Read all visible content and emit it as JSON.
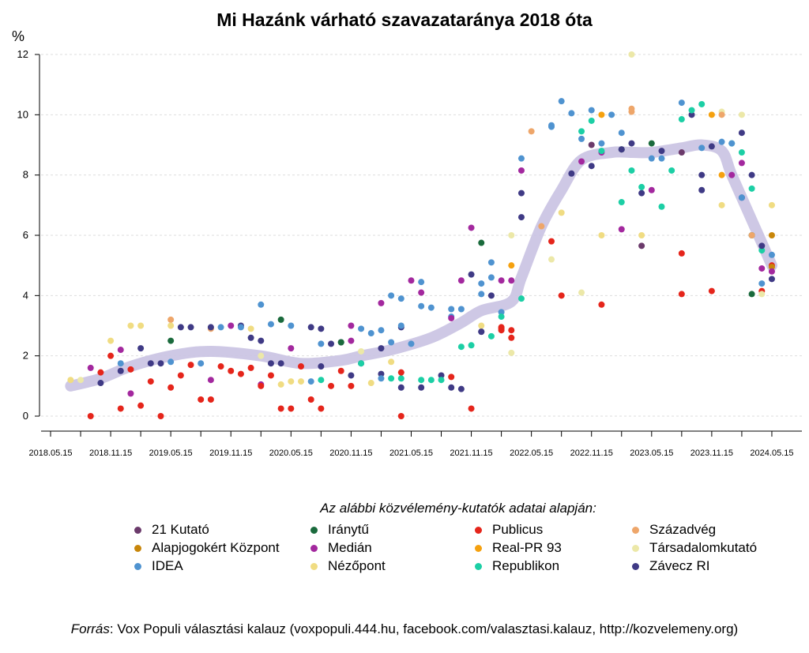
{
  "chart_data": {
    "type": "scatter",
    "title": "Mi Hazánk várható szavazataránya 2018 óta",
    "ylabel": "%",
    "ylim": [
      0,
      12
    ],
    "yticks": [
      "0",
      "2",
      "4",
      "6",
      "8",
      "10",
      "12"
    ],
    "xlim": [
      "2018-04",
      "2024-07"
    ],
    "xticks": [
      "2018.05.15",
      "2018.11.15",
      "2019.05.15",
      "2019.11.15",
      "2020.05.15",
      "2020.11.15",
      "2021.05.15",
      "2021.11.15",
      "2022.05.15",
      "2022.11.15",
      "2023.05.15",
      "2023.11.15",
      "2024.05.15"
    ],
    "grid": "horizontal dashed",
    "legend_title": "Az alábbi közvélemény-kutatók adatai alapján:",
    "legend_placement": "bottom",
    "pollsters": [
      {
        "code": "K21",
        "name": "21 Kutató",
        "color": "#6b3a6b"
      },
      {
        "code": "AJK",
        "name": "Alapjogokért Központ",
        "color": "#c8860a"
      },
      {
        "code": "IDEA",
        "name": "IDEA",
        "color": "#4f93d0"
      },
      {
        "code": "IR",
        "name": "Iránytű",
        "color": "#1a6a3c"
      },
      {
        "code": "MED",
        "name": "Medián",
        "color": "#a3289e"
      },
      {
        "code": "NEZ",
        "name": "Nézőpont",
        "color": "#f0dc82"
      },
      {
        "code": "PUB",
        "name": "Publicus",
        "color": "#e5251b"
      },
      {
        "code": "RPR",
        "name": "Real-PR 93",
        "color": "#f5a10f"
      },
      {
        "code": "REP",
        "name": "Republikon",
        "color": "#1ccfa5"
      },
      {
        "code": "SZA",
        "name": "Századvég",
        "color": "#eea66a"
      },
      {
        "code": "TAR",
        "name": "Társadalomkutató",
        "color": "#ece8a8"
      },
      {
        "code": "ZAV",
        "name": "Závecz RI",
        "color": "#3f3a85"
      }
    ],
    "trend_color": "#c9c2e2",
    "trend": [
      [
        "2018-07",
        1.0
      ],
      [
        "2018-10",
        1.25
      ],
      [
        "2019-01",
        1.65
      ],
      [
        "2019-05",
        2.0
      ],
      [
        "2019-09",
        2.15
      ],
      [
        "2020-02",
        2.0
      ],
      [
        "2020-06",
        1.75
      ],
      [
        "2020-10",
        1.85
      ],
      [
        "2020-12",
        2.0
      ],
      [
        "2021-03",
        2.2
      ],
      [
        "2021-07",
        2.6
      ],
      [
        "2021-10",
        3.1
      ],
      [
        "2021-12",
        3.5
      ],
      [
        "2022-03",
        3.8
      ],
      [
        "2022-04",
        4.6
      ],
      [
        "2022-06",
        6.3
      ],
      [
        "2022-08",
        7.5
      ],
      [
        "2022-10",
        8.5
      ],
      [
        "2023-01",
        8.75
      ],
      [
        "2023-03",
        8.75
      ],
      [
        "2023-05",
        8.75
      ],
      [
        "2023-08",
        8.9
      ],
      [
        "2023-10",
        9.0
      ],
      [
        "2023-12",
        8.8
      ],
      [
        "2024-01",
        8.0
      ],
      [
        "2024-03",
        6.5
      ],
      [
        "2024-05",
        5.0
      ]
    ],
    "points": [
      [
        "2018-07",
        1.2,
        "NEZ"
      ],
      [
        "2018-08",
        1.2,
        "TAR"
      ],
      [
        "2018-09",
        0,
        "PUB"
      ],
      [
        "2018-09",
        1.6,
        "MED"
      ],
      [
        "2018-10",
        1.45,
        "PUB"
      ],
      [
        "2018-10",
        1.1,
        "ZAV"
      ],
      [
        "2018-11",
        2.0,
        "PUB"
      ],
      [
        "2018-11",
        2.5,
        "NEZ"
      ],
      [
        "2018-12",
        2.2,
        "MED"
      ],
      [
        "2018-12",
        1.5,
        "ZAV"
      ],
      [
        "2018-12",
        0.25,
        "PUB"
      ],
      [
        "2018-12",
        1.75,
        "IDEA"
      ],
      [
        "2019-01",
        3.0,
        "NEZ"
      ],
      [
        "2019-01",
        1.55,
        "PUB"
      ],
      [
        "2019-01",
        0.75,
        "MED"
      ],
      [
        "2019-02",
        2.25,
        "ZAV"
      ],
      [
        "2019-02",
        3.0,
        "NEZ"
      ],
      [
        "2019-02",
        0.35,
        "PUB"
      ],
      [
        "2019-03",
        1.15,
        "PUB"
      ],
      [
        "2019-03",
        1.75,
        "ZAV"
      ],
      [
        "2019-04",
        0,
        "PUB"
      ],
      [
        "2019-04",
        1.75,
        "ZAV"
      ],
      [
        "2019-05",
        1.8,
        "IDEA"
      ],
      [
        "2019-05",
        3.2,
        "SZA"
      ],
      [
        "2019-05",
        2.5,
        "IR"
      ],
      [
        "2019-05",
        3.0,
        "NEZ"
      ],
      [
        "2019-06",
        2.95,
        "ZAV"
      ],
      [
        "2019-05",
        0.95,
        "PUB"
      ],
      [
        "2019-06",
        1.35,
        "PUB"
      ],
      [
        "2019-07",
        2.95,
        "ZAV"
      ],
      [
        "2019-07",
        1.7,
        "PUB"
      ],
      [
        "2019-08",
        0.55,
        "PUB"
      ],
      [
        "2019-09",
        0.55,
        "PUB"
      ],
      [
        "2019-09",
        2.9,
        "SZA"
      ],
      [
        "2019-08",
        1.75,
        "IDEA"
      ],
      [
        "2019-09",
        2.95,
        "ZAV"
      ],
      [
        "2019-09",
        1.2,
        "MED"
      ],
      [
        "2019-10",
        2.95,
        "IDEA"
      ],
      [
        "2019-10",
        1.65,
        "PUB"
      ],
      [
        "2019-11",
        1.5,
        "PUB"
      ],
      [
        "2019-11",
        3.0,
        "MED"
      ],
      [
        "2019-12",
        3.0,
        "ZAV"
      ],
      [
        "2019-12",
        2.95,
        "IDEA"
      ],
      [
        "2019-12",
        1.4,
        "PUB"
      ],
      [
        "2020-01",
        2.9,
        "NEZ"
      ],
      [
        "2020-01",
        2.6,
        "ZAV"
      ],
      [
        "2020-01",
        1.6,
        "PUB"
      ],
      [
        "2020-02",
        3.7,
        "IDEA"
      ],
      [
        "2020-02",
        2.0,
        "TAR"
      ],
      [
        "2020-02",
        2.5,
        "ZAV"
      ],
      [
        "2020-02",
        1.05,
        "MED"
      ],
      [
        "2020-02",
        1.0,
        "PUB"
      ],
      [
        "2020-03",
        1.75,
        "ZAV"
      ],
      [
        "2020-03",
        3.05,
        "IDEA"
      ],
      [
        "2020-03",
        1.35,
        "PUB"
      ],
      [
        "2020-04",
        0.25,
        "PUB"
      ],
      [
        "2020-04",
        3.2,
        "IR"
      ],
      [
        "2020-04",
        1.75,
        "ZAV"
      ],
      [
        "2020-05",
        2.25,
        "MED"
      ],
      [
        "2020-05",
        3.0,
        "IDEA"
      ],
      [
        "2020-05",
        0.25,
        "PUB"
      ],
      [
        "2020-04",
        1.05,
        "NEZ"
      ],
      [
        "2020-05",
        1.15,
        "NEZ"
      ],
      [
        "2020-06",
        1.15,
        "NEZ"
      ],
      [
        "2020-06",
        1.65,
        "PUB"
      ],
      [
        "2020-07",
        2.95,
        "ZAV"
      ],
      [
        "2020-07",
        0.55,
        "PUB"
      ],
      [
        "2020-08",
        2.9,
        "ZAV"
      ],
      [
        "2020-08",
        0.25,
        "PUB"
      ],
      [
        "2020-07",
        1.15,
        "IDEA"
      ],
      [
        "2020-08",
        1.2,
        "REP"
      ],
      [
        "2020-08",
        1.65,
        "ZAV"
      ],
      [
        "2020-08",
        2.4,
        "IDEA"
      ],
      [
        "2020-09",
        2.4,
        "ZAV"
      ],
      [
        "2020-09",
        1.0,
        "PUB"
      ],
      [
        "2020-10",
        2.45,
        "ZAV"
      ],
      [
        "2020-10",
        1.5,
        "PUB"
      ],
      [
        "2020-10",
        2.45,
        "IR"
      ],
      [
        "2020-11",
        1.0,
        "PUB"
      ],
      [
        "2020-11",
        1.35,
        "ZAV"
      ],
      [
        "2020-11",
        3.0,
        "MED"
      ],
      [
        "2020-11",
        2.5,
        "MED"
      ],
      [
        "2020-12",
        1.75,
        "ZAV"
      ],
      [
        "2020-12",
        2.9,
        "IDEA"
      ],
      [
        "2020-12",
        2.15,
        "TAR"
      ],
      [
        "2020-12",
        1.75,
        "REP"
      ],
      [
        "2021-01",
        1.1,
        "NEZ"
      ],
      [
        "2021-01",
        2.75,
        "IDEA"
      ],
      [
        "2021-02",
        1.4,
        "ZAV"
      ],
      [
        "2021-02",
        1.25,
        "IDEA"
      ],
      [
        "2021-02",
        3.75,
        "MED"
      ],
      [
        "2021-02",
        2.85,
        "IDEA"
      ],
      [
        "2021-02",
        2.25,
        "ZAV"
      ],
      [
        "2021-03",
        1.8,
        "NEZ"
      ],
      [
        "2021-03",
        1.25,
        "REP"
      ],
      [
        "2021-03",
        4.0,
        "IDEA"
      ],
      [
        "2021-03",
        2.45,
        "IDEA"
      ],
      [
        "2021-04",
        2.95,
        "ZAV"
      ],
      [
        "2021-04",
        0.95,
        "ZAV"
      ],
      [
        "2021-04",
        1.25,
        "REP"
      ],
      [
        "2021-04",
        0,
        "PUB"
      ],
      [
        "2021-04",
        1.45,
        "PUB"
      ],
      [
        "2021-04",
        3.0,
        "IDEA"
      ],
      [
        "2021-04",
        3.9,
        "IDEA"
      ],
      [
        "2021-05",
        4.5,
        "MED"
      ],
      [
        "2021-05",
        2.4,
        "IDEA"
      ],
      [
        "2021-06",
        4.1,
        "MED"
      ],
      [
        "2021-06",
        0.95,
        "ZAV"
      ],
      [
        "2021-06",
        1.2,
        "REP"
      ],
      [
        "2021-06",
        4.45,
        "IDEA"
      ],
      [
        "2021-06",
        3.65,
        "IDEA"
      ],
      [
        "2021-07",
        3.6,
        "IDEA"
      ],
      [
        "2021-07",
        1.2,
        "REP"
      ],
      [
        "2021-08",
        1.35,
        "ZAV"
      ],
      [
        "2021-08",
        1.2,
        "REP"
      ],
      [
        "2021-09",
        3.55,
        "IDEA"
      ],
      [
        "2021-09",
        3.3,
        "IDEA"
      ],
      [
        "2021-09",
        0.95,
        "ZAV"
      ],
      [
        "2021-09",
        1.3,
        "PUB"
      ],
      [
        "2021-09",
        3.25,
        "MED"
      ],
      [
        "2021-10",
        4.5,
        "MED"
      ],
      [
        "2021-10",
        0.9,
        "ZAV"
      ],
      [
        "2021-10",
        3.55,
        "IDEA"
      ],
      [
        "2021-10",
        2.3,
        "REP"
      ],
      [
        "2021-11",
        4.7,
        "ZAV"
      ],
      [
        "2021-11",
        2.35,
        "REP"
      ],
      [
        "2021-11",
        0.25,
        "PUB"
      ],
      [
        "2021-11",
        6.25,
        "MED"
      ],
      [
        "2021-12",
        5.75,
        "IR"
      ],
      [
        "2021-12",
        2.8,
        "ZAV"
      ],
      [
        "2021-12",
        4.4,
        "IDEA"
      ],
      [
        "2021-12",
        4.05,
        "IDEA"
      ],
      [
        "2021-12",
        3.0,
        "NEZ"
      ],
      [
        "2021-12",
        2.8,
        "ZAV"
      ],
      [
        "2022-01",
        4.0,
        "ZAV"
      ],
      [
        "2022-01",
        2.65,
        "REP"
      ],
      [
        "2022-01",
        4.6,
        "IDEA"
      ],
      [
        "2022-01",
        5.1,
        "IDEA"
      ],
      [
        "2022-02",
        2.85,
        "PUB"
      ],
      [
        "2022-02",
        4.5,
        "MED"
      ],
      [
        "2022-02",
        3.45,
        "IDEA"
      ],
      [
        "2022-02",
        2.9,
        "PUB"
      ],
      [
        "2022-02",
        3.3,
        "REP"
      ],
      [
        "2022-02",
        2.95,
        "PUB"
      ],
      [
        "2022-03",
        2.1,
        "TAR"
      ],
      [
        "2022-03",
        5.0,
        "RPR"
      ],
      [
        "2022-03",
        2.85,
        "PUB"
      ],
      [
        "2022-03",
        2.6,
        "PUB"
      ],
      [
        "2022-03",
        4.5,
        "MED"
      ],
      [
        "2022-03",
        6.0,
        "TAR"
      ],
      [
        "2022-04",
        3.9,
        "REP"
      ],
      [
        "2022-04",
        8.15,
        "MED"
      ],
      [
        "2022-04",
        7.4,
        "ZAV"
      ],
      [
        "2022-04",
        6.6,
        "ZAV"
      ],
      [
        "2022-04",
        8.55,
        "IDEA"
      ],
      [
        "2022-05",
        9.45,
        "SZA"
      ],
      [
        "2022-06",
        6.3,
        "SZA"
      ],
      [
        "2022-07",
        9.6,
        "IDEA"
      ],
      [
        "2022-07",
        5.2,
        "TAR"
      ],
      [
        "2022-07",
        5.8,
        "PUB"
      ],
      [
        "2022-07",
        9.65,
        "IDEA"
      ],
      [
        "2022-08",
        4.0,
        "PUB"
      ],
      [
        "2022-08",
        6.75,
        "NEZ"
      ],
      [
        "2022-08",
        10.45,
        "IDEA"
      ],
      [
        "2022-09",
        8.05,
        "ZAV"
      ],
      [
        "2022-09",
        10.05,
        "IDEA"
      ],
      [
        "2022-10",
        4.1,
        "TAR"
      ],
      [
        "2022-10",
        9.45,
        "REP"
      ],
      [
        "2022-10",
        8.45,
        "MED"
      ],
      [
        "2022-10",
        9.2,
        "IDEA"
      ],
      [
        "2022-11",
        9.0,
        "K21"
      ],
      [
        "2022-11",
        8.3,
        "ZAV"
      ],
      [
        "2022-11",
        9.8,
        "REP"
      ],
      [
        "2022-11",
        10.15,
        "IDEA"
      ],
      [
        "2022-12",
        10.0,
        "RPR"
      ],
      [
        "2022-12",
        8.75,
        "MED"
      ],
      [
        "2022-12",
        3.7,
        "PUB"
      ],
      [
        "2022-12",
        9.05,
        "IDEA"
      ],
      [
        "2022-12",
        6.0,
        "NEZ"
      ],
      [
        "2022-12",
        8.8,
        "REP"
      ],
      [
        "2023-01",
        10.0,
        "IDEA"
      ],
      [
        "2023-02",
        8.85,
        "IR"
      ],
      [
        "2023-02",
        7.1,
        "REP"
      ],
      [
        "2023-02",
        8.85,
        "ZAV"
      ],
      [
        "2023-02",
        6.2,
        "MED"
      ],
      [
        "2023-02",
        9.4,
        "IDEA"
      ],
      [
        "2023-03",
        10.2,
        "SZA"
      ],
      [
        "2023-03",
        10.1,
        "SZA"
      ],
      [
        "2023-03",
        8.15,
        "REP"
      ],
      [
        "2023-03",
        12.0,
        "TAR"
      ],
      [
        "2023-03",
        9.05,
        "ZAV"
      ],
      [
        "2023-04",
        5.65,
        "K21"
      ],
      [
        "2023-04",
        7.6,
        "REP"
      ],
      [
        "2023-04",
        7.4,
        "ZAV"
      ],
      [
        "2023-04",
        6.0,
        "NEZ"
      ],
      [
        "2023-05",
        9.05,
        "IR"
      ],
      [
        "2023-05",
        7.5,
        "MED"
      ],
      [
        "2023-05",
        8.55,
        "IDEA"
      ],
      [
        "2023-06",
        6.95,
        "REP"
      ],
      [
        "2023-06",
        8.8,
        "ZAV"
      ],
      [
        "2023-06",
        8.55,
        "IDEA"
      ],
      [
        "2023-07",
        8.15,
        "REP"
      ],
      [
        "2023-08",
        9.85,
        "REP"
      ],
      [
        "2023-08",
        10.4,
        "IDEA"
      ],
      [
        "2023-08",
        5.4,
        "PUB"
      ],
      [
        "2023-08",
        4.05,
        "PUB"
      ],
      [
        "2023-08",
        8.75,
        "K21"
      ],
      [
        "2023-09",
        10.0,
        "ZAV"
      ],
      [
        "2023-09",
        10.15,
        "REP"
      ],
      [
        "2023-10",
        10.35,
        "REP"
      ],
      [
        "2023-10",
        8.9,
        "IDEA"
      ],
      [
        "2023-10",
        7.5,
        "ZAV"
      ],
      [
        "2023-10",
        8.0,
        "ZAV"
      ],
      [
        "2023-11",
        8.95,
        "ZAV"
      ],
      [
        "2023-11",
        4.15,
        "PUB"
      ],
      [
        "2023-11",
        10.0,
        "RPR"
      ],
      [
        "2023-12",
        8.0,
        "RPR"
      ],
      [
        "2023-12",
        10.1,
        "TAR"
      ],
      [
        "2023-12",
        10.0,
        "SZA"
      ],
      [
        "2023-12",
        7.0,
        "NEZ"
      ],
      [
        "2023-12",
        9.1,
        "IDEA"
      ],
      [
        "2024-01",
        8.0,
        "MED"
      ],
      [
        "2024-01",
        9.05,
        "REP"
      ],
      [
        "2024-01",
        9.05,
        "IDEA"
      ],
      [
        "2024-02",
        8.75,
        "REP"
      ],
      [
        "2024-02",
        10.0,
        "TAR"
      ],
      [
        "2024-02",
        9.4,
        "ZAV"
      ],
      [
        "2024-02",
        8.4,
        "MED"
      ],
      [
        "2024-02",
        7.25,
        "ZAV"
      ],
      [
        "2024-02",
        7.25,
        "IDEA"
      ],
      [
        "2024-03",
        7.55,
        "REP"
      ],
      [
        "2024-03",
        6.0,
        "IR"
      ],
      [
        "2024-03",
        8.0,
        "ZAV"
      ],
      [
        "2024-03",
        6.0,
        "SZA"
      ],
      [
        "2024-03",
        4.05,
        "IR"
      ],
      [
        "2024-04",
        4.15,
        "PUB"
      ],
      [
        "2024-04",
        4.9,
        "MED"
      ],
      [
        "2024-04",
        5.5,
        "REP"
      ],
      [
        "2024-04",
        4.4,
        "IDEA"
      ],
      [
        "2024-04",
        5.65,
        "ZAV"
      ],
      [
        "2024-04",
        4.05,
        "TAR"
      ],
      [
        "2024-05",
        7.0,
        "NEZ"
      ],
      [
        "2024-05",
        6.0,
        "AJK"
      ],
      [
        "2024-05",
        5.35,
        "IDEA"
      ],
      [
        "2024-05",
        5.0,
        "PUB"
      ],
      [
        "2024-05",
        4.95,
        "AJK"
      ],
      [
        "2024-05",
        4.8,
        "MED"
      ],
      [
        "2024-05",
        4.55,
        "ZAV"
      ]
    ]
  },
  "source": {
    "label": "Forrás",
    "text": ": Vox Populi választási kalauz (voxpopuli.444.hu, facebook.com/valasztasi.kalauz, http://kozvelemeny.org)"
  }
}
